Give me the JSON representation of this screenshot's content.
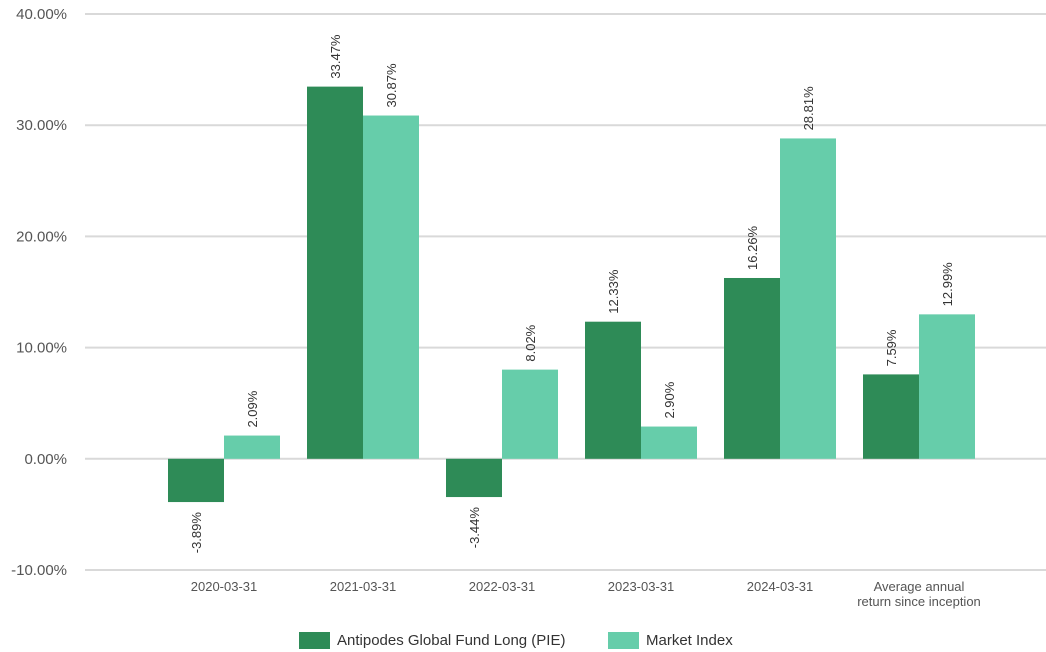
{
  "chart_data": {
    "type": "bar",
    "categories": [
      "2020-03-31",
      "2021-03-31",
      "2022-03-31",
      "2023-03-31",
      "2024-03-31",
      "Average annual return since inception"
    ],
    "category_label_lines": [
      [
        "2020-03-31"
      ],
      [
        "2021-03-31"
      ],
      [
        "2022-03-31"
      ],
      [
        "2023-03-31"
      ],
      [
        "2024-03-31"
      ],
      [
        "Average annual",
        "return since inception"
      ]
    ],
    "series": [
      {
        "name": "Antipodes Global Fund Long (PIE)",
        "color": "#2e8b57",
        "values": [
          -3.89,
          33.47,
          -3.44,
          12.33,
          16.26,
          7.59
        ],
        "labels": [
          "-3.89%",
          "33.47%",
          "-3.44%",
          "12.33%",
          "16.26%",
          "7.59%"
        ]
      },
      {
        "name": "Market Index",
        "color": "#66cdaa",
        "values": [
          2.09,
          30.87,
          8.02,
          2.9,
          28.81,
          12.99
        ],
        "labels": [
          "2.09%",
          "30.87%",
          "8.02%",
          "2.90%",
          "28.81%",
          "12.99%"
        ]
      }
    ],
    "ylim": [
      -10,
      40
    ],
    "yticks": [
      40,
      30,
      20,
      10,
      0,
      -10
    ],
    "ytick_labels": [
      "40.00%",
      "30.00%",
      "20.00%",
      "10.00%",
      "0.00%",
      "-10.00%"
    ],
    "title": "",
    "xlabel": "",
    "ylabel": "",
    "grid": true,
    "legend_position": "bottom-center"
  }
}
